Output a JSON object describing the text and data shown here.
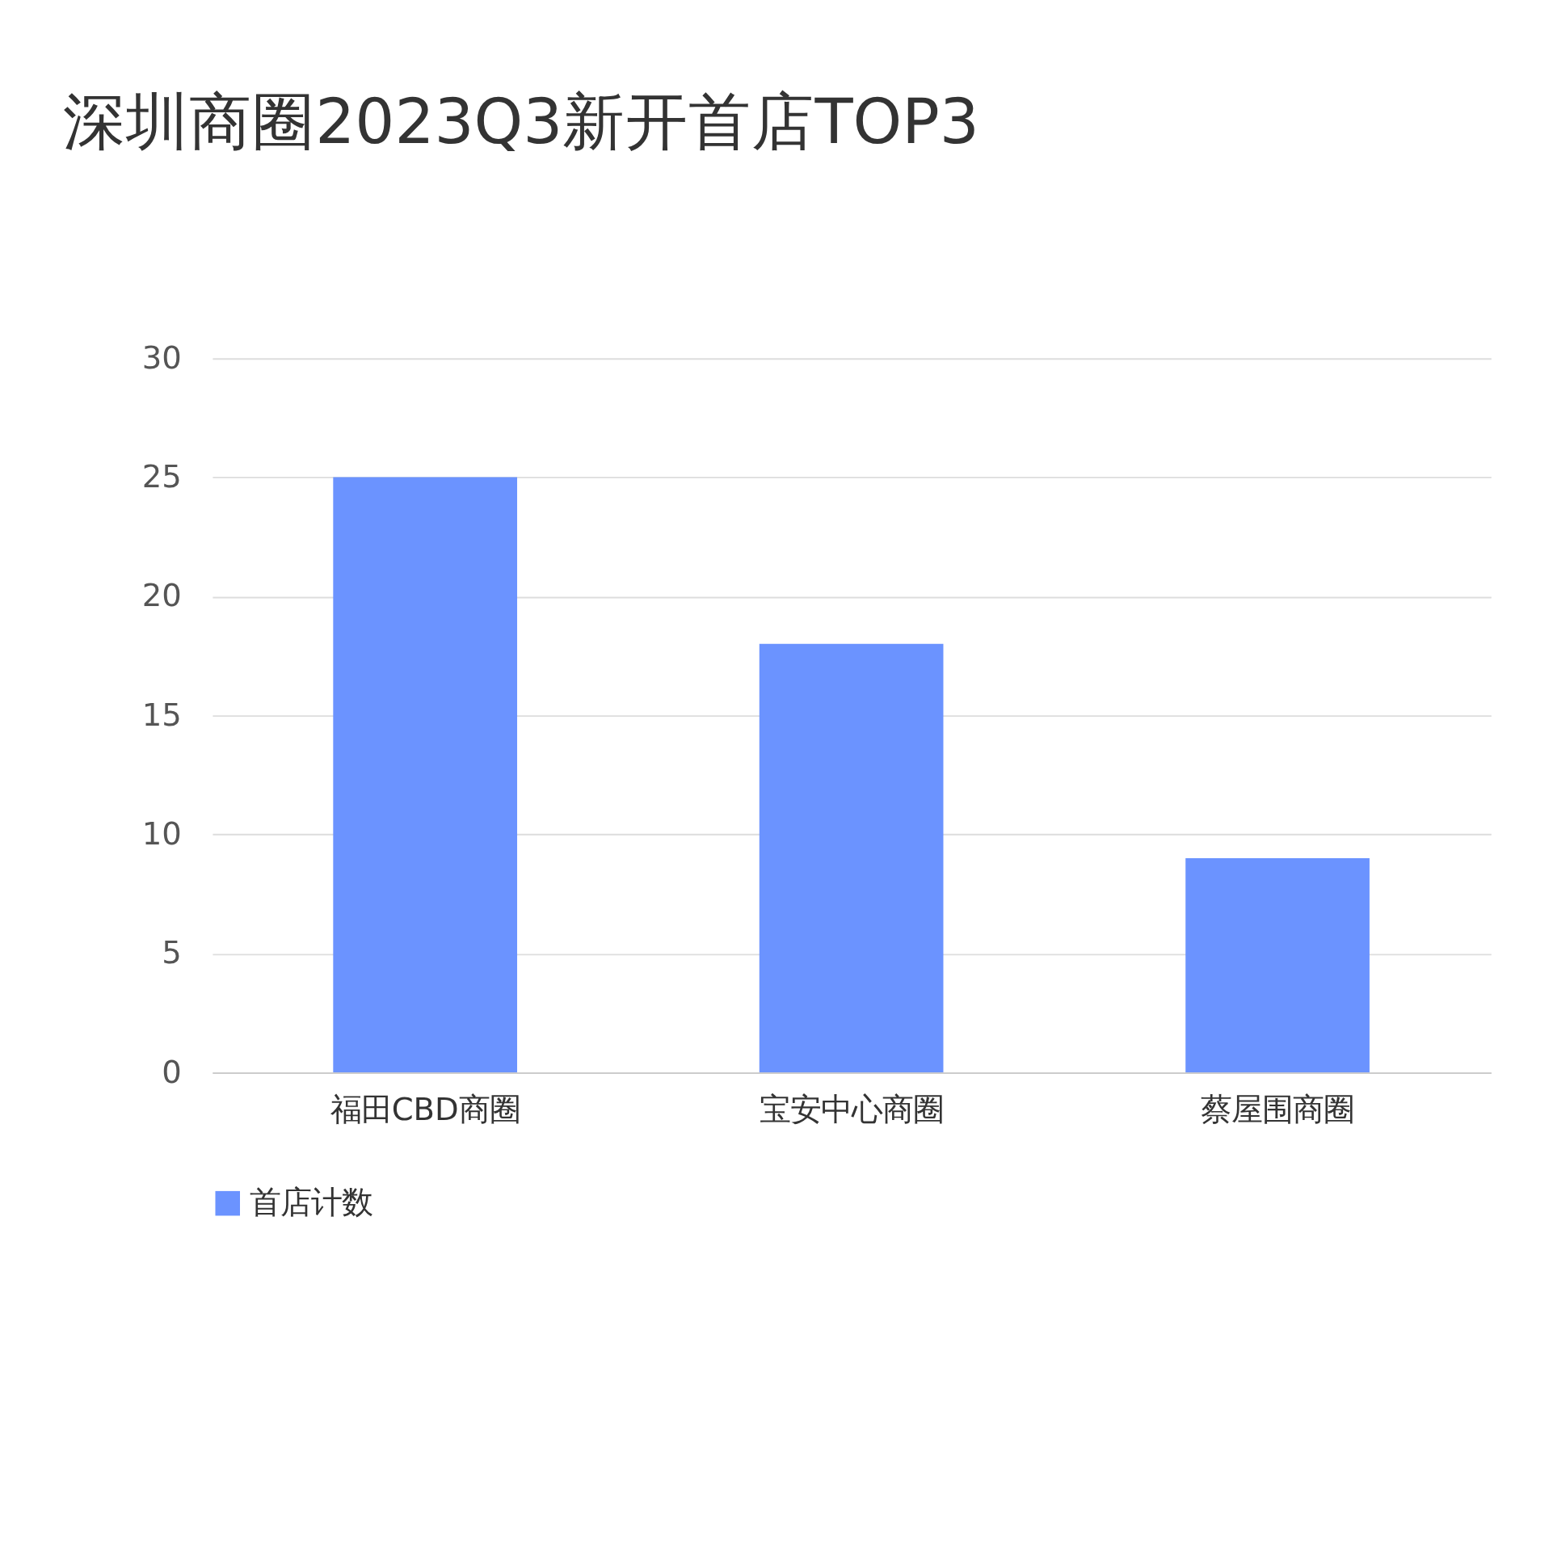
{
  "chart_data": {
    "type": "bar",
    "title": "深圳商圈2023Q3新开首店TOP3",
    "categories": [
      "福田CBD商圈",
      "宝安中心商圈",
      "蔡屋围商圈"
    ],
    "series": [
      {
        "name": "首店计数",
        "color": "#6b93ff",
        "values": [
          25,
          18,
          9
        ]
      }
    ],
    "ylim": [
      0,
      30
    ],
    "yticks": [
      0,
      5,
      10,
      15,
      20,
      25,
      30
    ],
    "grid": "y",
    "legend": "bottom"
  }
}
